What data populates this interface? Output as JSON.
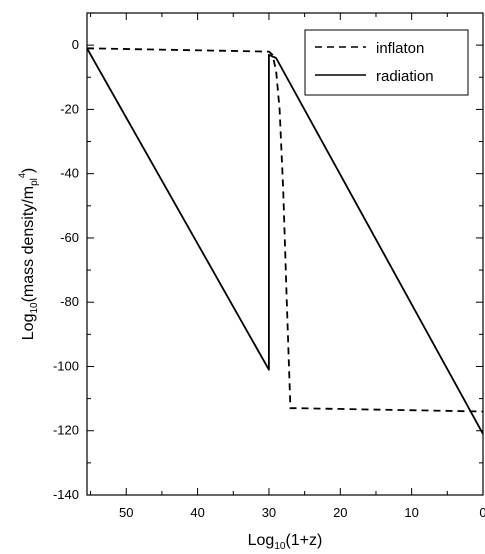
{
  "chart_data": {
    "type": "line",
    "title": "",
    "xlabel_main": "Log",
    "xlabel_sub": "10",
    "xlabel_rest": "(1+z)",
    "ylabel_main": "Log",
    "ylabel_sub": "10",
    "ylabel_mid": "(mass density/m",
    "ylabel_sub2": "pl",
    "ylabel_sup": "4",
    "ylabel_end": ")",
    "xlim": [
      55.5,
      0
    ],
    "ylim": [
      -140,
      10
    ],
    "x_reversed": true,
    "xticks": [
      "50",
      "40",
      "30",
      "20",
      "10",
      "0"
    ],
    "yticks": [
      "0",
      "-20",
      "-40",
      "-60",
      "-80",
      "-100",
      "-120",
      "-140"
    ],
    "legend_position": "top-right",
    "series": [
      {
        "name": "inflaton",
        "style": "dashed",
        "x": [
          55.5,
          30,
          29.5,
          29,
          28.5,
          28,
          27.5,
          27,
          26,
          0
        ],
        "y": [
          -1,
          -2,
          -3,
          -8,
          -20,
          -45,
          -80,
          -113,
          -113,
          -114
        ]
      },
      {
        "name": "radiation",
        "style": "solid",
        "x": [
          55.5,
          30,
          30,
          29,
          0
        ],
        "y": [
          -1,
          -101,
          -3,
          -4,
          -121
        ]
      }
    ]
  }
}
